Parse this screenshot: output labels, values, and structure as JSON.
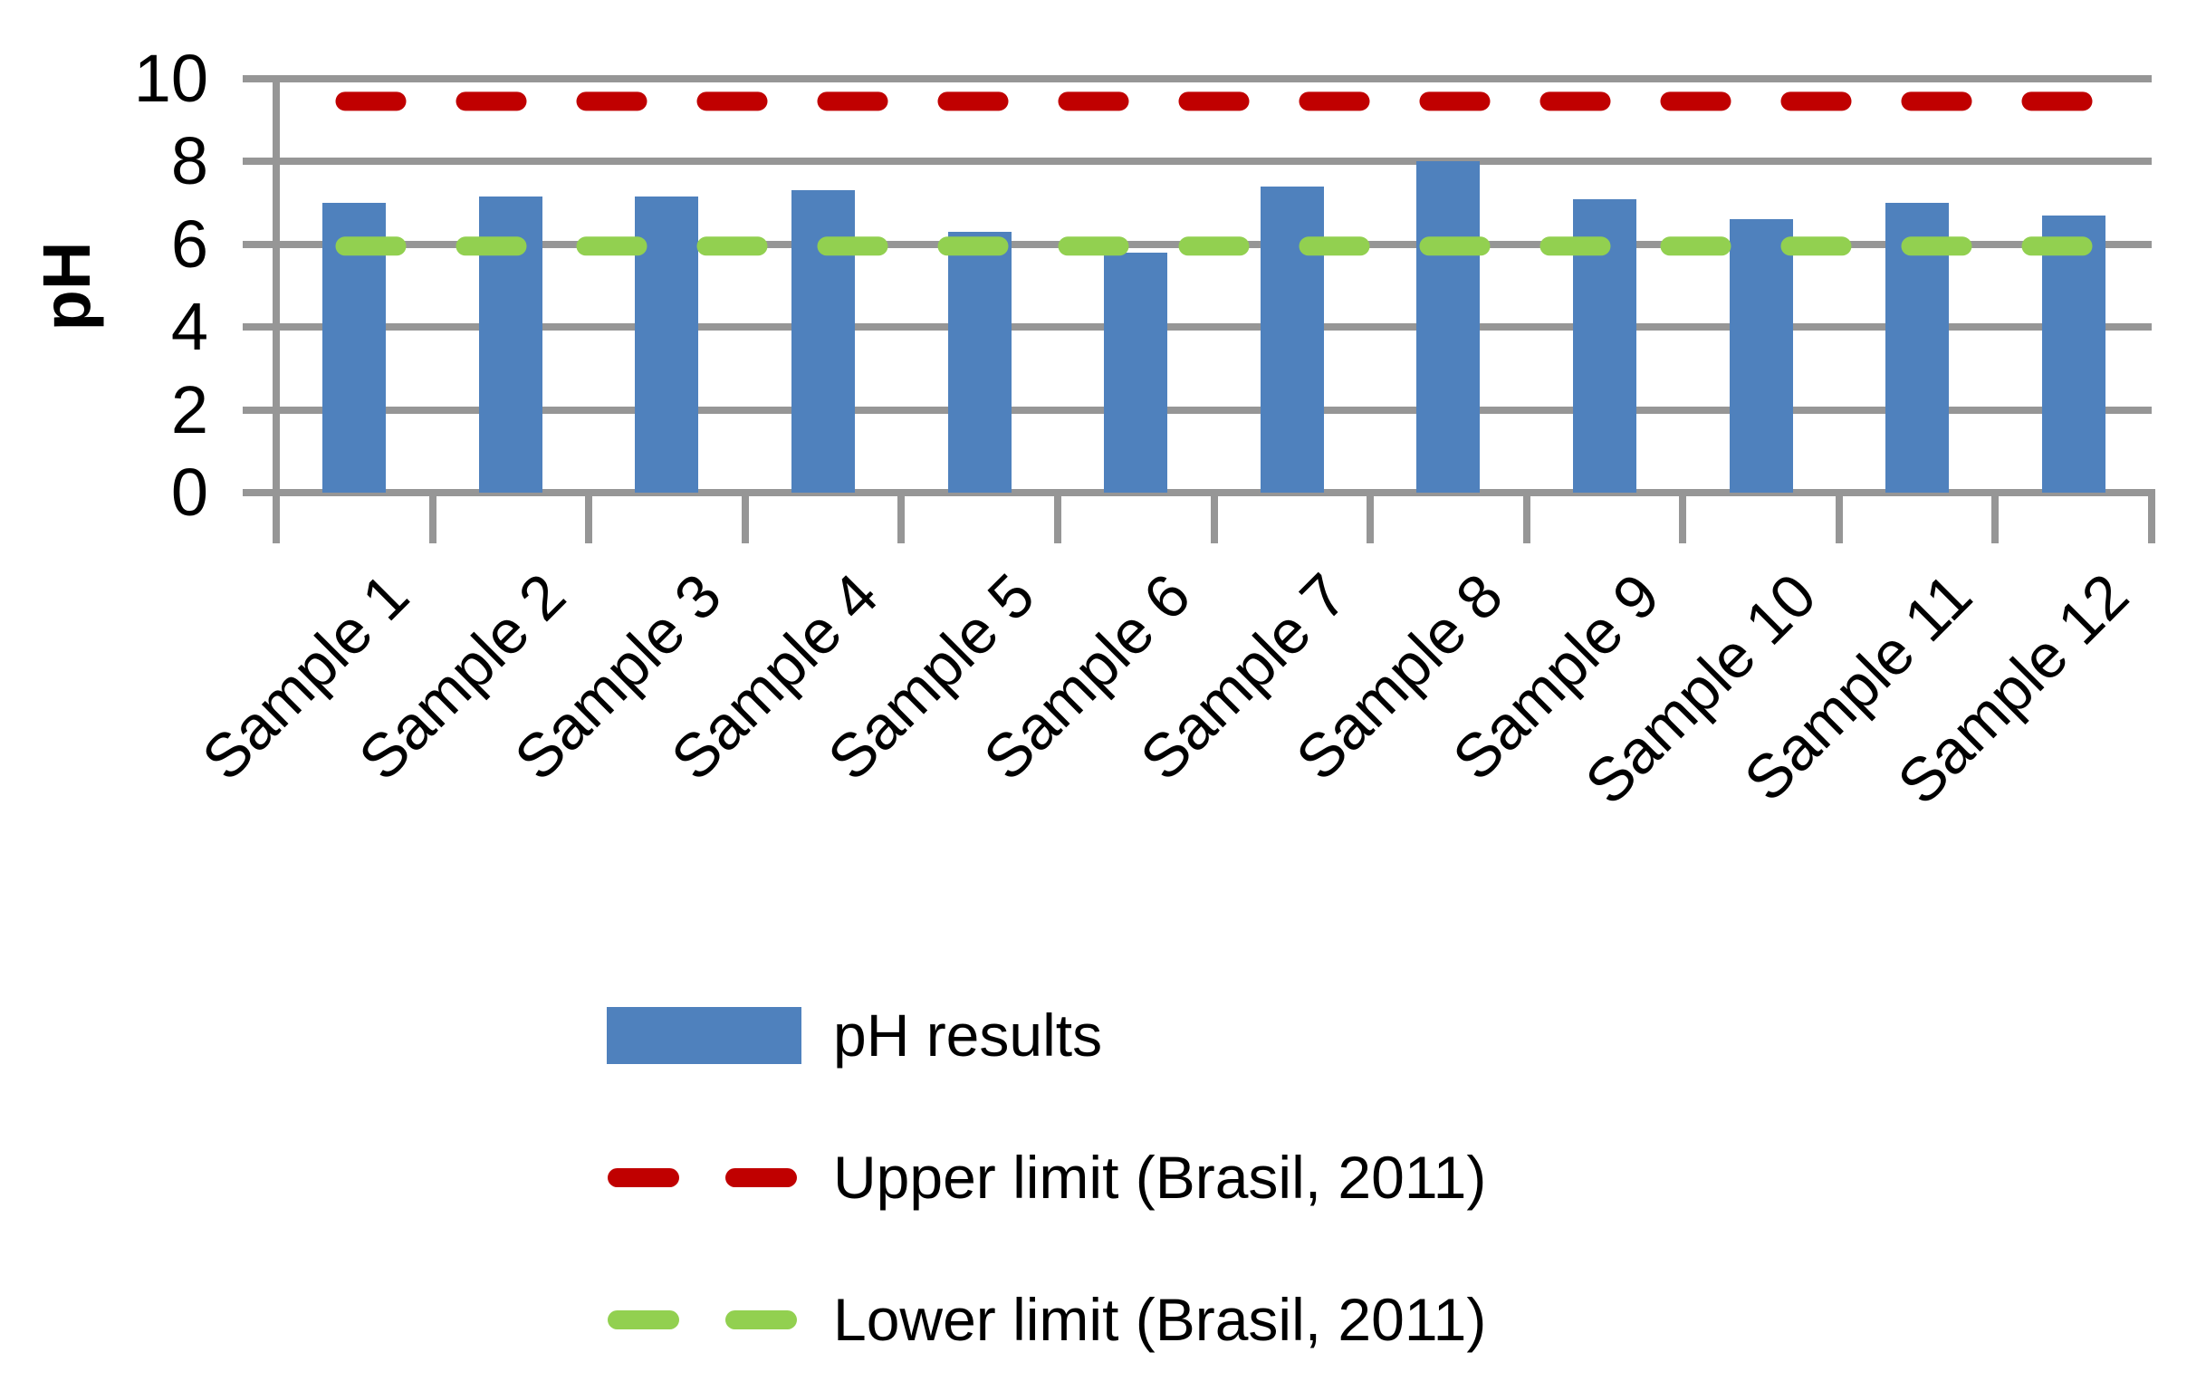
{
  "chart_data": {
    "type": "bar",
    "title": "",
    "xlabel": "",
    "ylabel": "pH",
    "categories": [
      "Sample 1",
      "Sample 2",
      "Sample 3",
      "Sample 4",
      "Sample 5",
      "Sample 6",
      "Sample 7",
      "Sample 8",
      "Sample 9",
      "Sample 10",
      "Sample 11",
      "Sample 12"
    ],
    "series": [
      {
        "name": "pH results",
        "type": "bar",
        "color": "#4F81BD",
        "values": [
          7.0,
          7.15,
          7.15,
          7.3,
          6.3,
          5.8,
          7.4,
          8.0,
          7.1,
          6.6,
          7.0,
          6.7
        ]
      },
      {
        "name": "Upper limit (Brasil, 2011)",
        "type": "dashed-line",
        "color": "#C00000",
        "value": 9.5
      },
      {
        "name": "Lower limit (Brasil, 2011)",
        "type": "dashed-line",
        "color": "#92D050",
        "value": 6.0
      }
    ],
    "ylim": [
      0,
      10
    ],
    "yticks": [
      0,
      2,
      4,
      6,
      8,
      10
    ],
    "grid": true,
    "legend_position": "bottom-left"
  },
  "legend": {
    "items": [
      {
        "label": "pH results",
        "swatch": "bar",
        "color": "#4F81BD"
      },
      {
        "label": "Upper limit (Brasil, 2011)",
        "swatch": "dashes",
        "color": "#C00000"
      },
      {
        "label": "Lower limit (Brasil, 2011)",
        "swatch": "dashes",
        "color": "#92D050"
      }
    ]
  },
  "colors": {
    "bar": "#4F81BD",
    "upper_limit": "#C00000",
    "lower_limit": "#92D050",
    "grid": "#969696",
    "text": "#000000",
    "background": "#FFFFFF"
  }
}
